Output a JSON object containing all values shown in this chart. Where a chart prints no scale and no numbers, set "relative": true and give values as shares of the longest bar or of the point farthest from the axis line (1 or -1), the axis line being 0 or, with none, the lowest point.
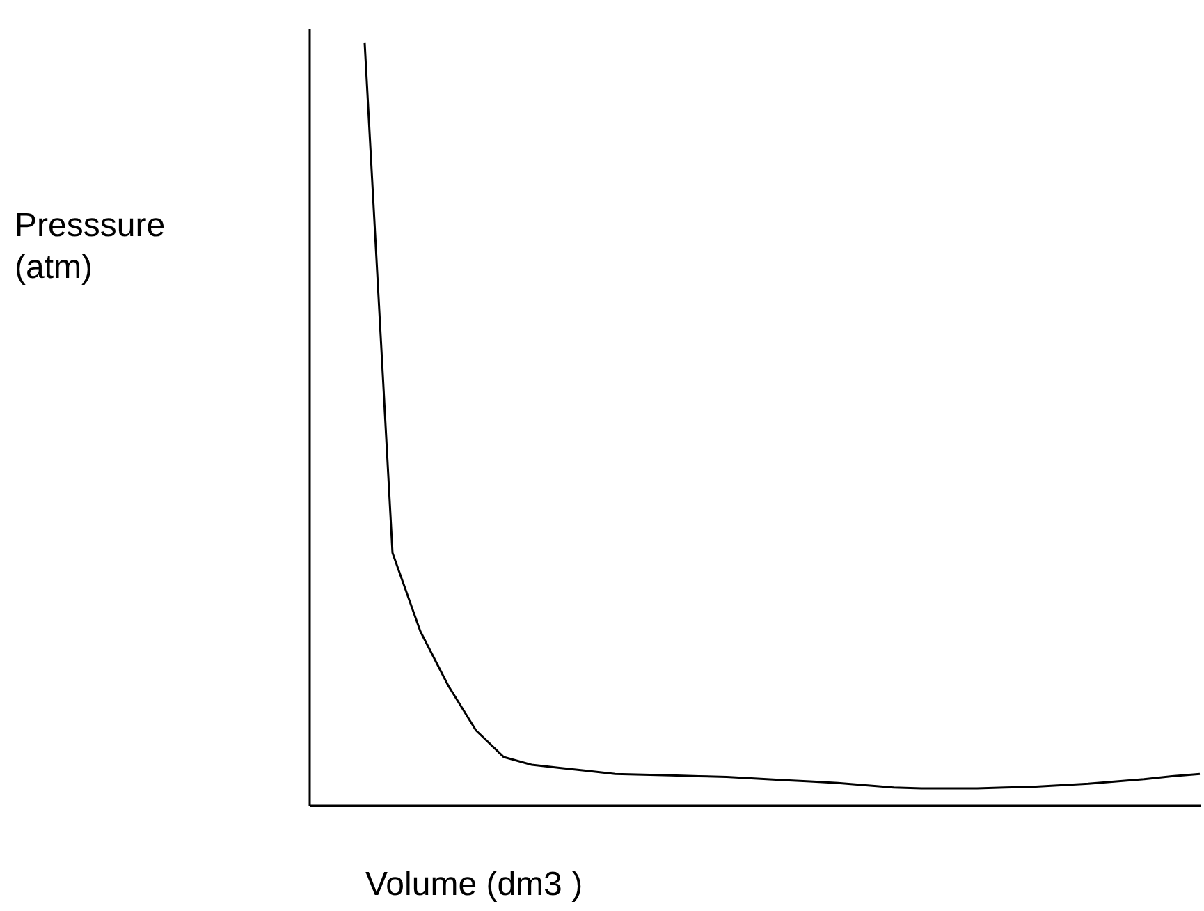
{
  "chart_data": {
    "type": "line",
    "relative": true,
    "xlabel": "Volume (dm3 )",
    "ylabel": "Presssure (atm)",
    "categories": [
      null,
      null,
      null,
      null,
      null,
      null,
      null,
      null,
      null,
      null,
      null,
      null,
      null,
      null,
      null,
      null,
      null,
      null,
      null,
      null,
      null,
      null,
      null,
      null,
      null,
      null,
      null,
      null,
      null,
      null,
      null,
      null,
      null
    ],
    "series": [
      {
        "color": "#000000",
        "values": [
          null,
          null,
          1.0,
          0.331,
          0.228,
          0.157,
          0.098,
          0.063,
          0.053,
          0.049,
          0.045,
          0.041,
          0.04,
          0.039,
          0.038,
          0.037,
          0.035,
          0.033,
          0.031,
          0.029,
          0.026,
          0.023,
          0.022,
          0.022,
          0.022,
          0.023,
          0.024,
          0.026,
          0.028,
          0.031,
          0.034,
          0.038,
          0.041
        ]
      }
    ],
    "grid": false,
    "marker": "none",
    "line_style": "solid"
  }
}
